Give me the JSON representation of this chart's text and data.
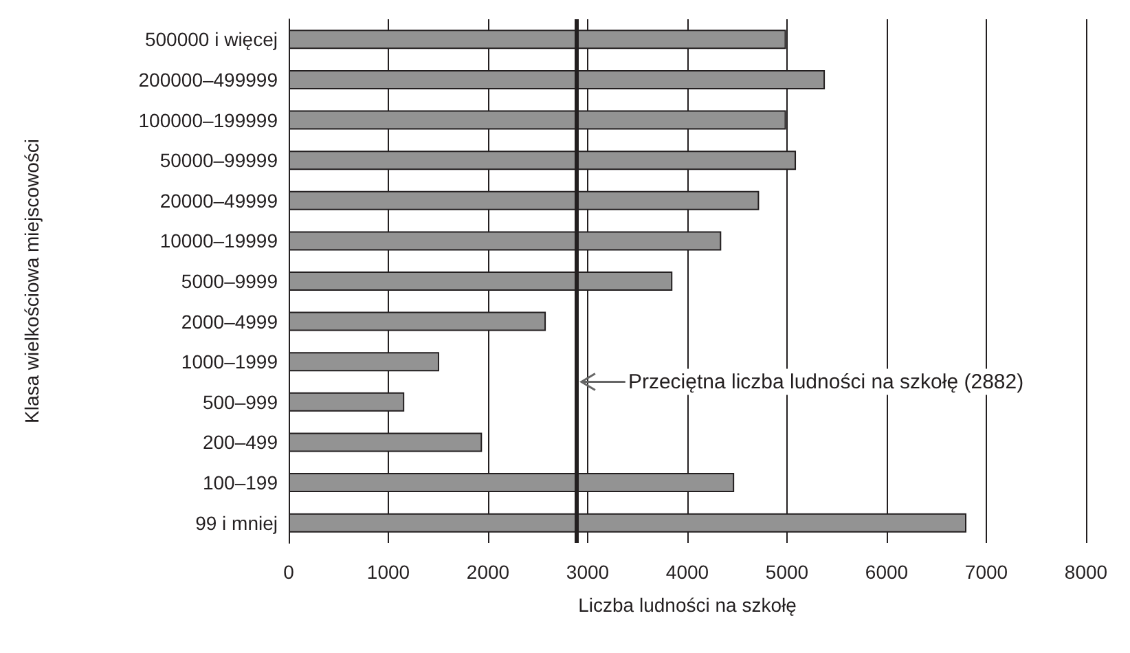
{
  "chart_data": {
    "type": "bar",
    "orientation": "horizontal",
    "xlabel": "Liczba ludności na szkołę",
    "ylabel": "Klasa wielkościowa miejscowości",
    "categories": [
      "500000 i więcej",
      "200000–499999",
      "100000–199999",
      "50000–99999",
      "20000–49999",
      "10000–19999",
      "5000–9999",
      "2000–4999",
      "1000–1999",
      "500–999",
      "200–499",
      "100–199",
      "99 i mniej"
    ],
    "values": [
      4990,
      5380,
      4990,
      5090,
      4720,
      4340,
      3850,
      2580,
      1510,
      1160,
      1940,
      4470,
      6800
    ],
    "color": "#939393",
    "xlim": [
      0,
      8000
    ],
    "xticks": [
      0,
      1000,
      2000,
      3000,
      4000,
      5000,
      6000,
      7000,
      8000
    ],
    "grid": "x",
    "ref_lines": [
      {
        "axis": "x",
        "value": 2882,
        "label": "Przeciętna liczba ludności na szkołę (2882)",
        "color": "#231f20"
      }
    ]
  }
}
